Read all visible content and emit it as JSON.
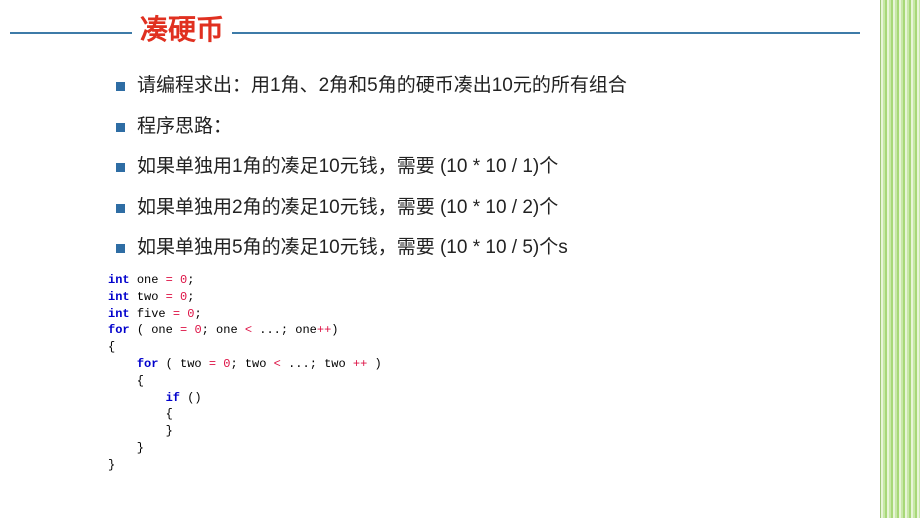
{
  "title": "凑硬币",
  "bullets": [
    "请编程求出：用1角、2角和5角的硬币凑出10元的所有组合",
    "程序思路：",
    "如果单独用1角的凑足10元钱，需要 (10 * 10 / 1)个",
    "如果单独用2角的凑足10元钱，需要 (10 * 10 / 2)个",
    "如果单独用5角的凑足10元钱，需要 (10 * 10 / 5)个s"
  ],
  "colors": {
    "title": "#e03020",
    "rule": "#3d7ba8",
    "bullet": "#2e6da4",
    "text": "#222222",
    "keyword": "#0000cc",
    "literal": "#dd1144",
    "guide": "#c8c8d0",
    "stripe_light": "#e8f5d8",
    "stripe_mid": "#c8e8a8",
    "stripe_dark": "#a8d878"
  },
  "code": {
    "lines": [
      [
        {
          "t": "int ",
          "c": "kw"
        },
        {
          "t": "one ",
          "c": ""
        },
        {
          "t": "= ",
          "c": "op"
        },
        {
          "t": "0",
          "c": "num"
        },
        {
          "t": ";",
          "c": ""
        }
      ],
      [
        {
          "t": "int ",
          "c": "kw"
        },
        {
          "t": "two ",
          "c": ""
        },
        {
          "t": "= ",
          "c": "op"
        },
        {
          "t": "0",
          "c": "num"
        },
        {
          "t": ";",
          "c": ""
        }
      ],
      [
        {
          "t": "int ",
          "c": "kw"
        },
        {
          "t": "five ",
          "c": ""
        },
        {
          "t": "= ",
          "c": "op"
        },
        {
          "t": "0",
          "c": "num"
        },
        {
          "t": ";",
          "c": ""
        }
      ],
      [
        {
          "t": "",
          "c": ""
        }
      ],
      [
        {
          "t": "for ",
          "c": "kw"
        },
        {
          "t": "( one ",
          "c": ""
        },
        {
          "t": "= ",
          "c": "op"
        },
        {
          "t": "0",
          "c": "num"
        },
        {
          "t": "; one ",
          "c": ""
        },
        {
          "t": "< ",
          "c": "op"
        },
        {
          "t": "...",
          "c": ""
        },
        {
          "t": "; one",
          "c": ""
        },
        {
          "t": "++",
          "c": "op"
        },
        {
          "t": ")",
          "c": ""
        }
      ],
      [
        {
          "t": "{",
          "c": ""
        }
      ],
      [
        {
          "t": "    ",
          "c": ""
        },
        {
          "t": "for ",
          "c": "kw"
        },
        {
          "t": "( two ",
          "c": ""
        },
        {
          "t": "= ",
          "c": "op"
        },
        {
          "t": "0",
          "c": "num"
        },
        {
          "t": "; two ",
          "c": ""
        },
        {
          "t": "< ",
          "c": "op"
        },
        {
          "t": "...",
          "c": ""
        },
        {
          "t": "; two ",
          "c": ""
        },
        {
          "t": "++ ",
          "c": "op"
        },
        {
          "t": ")",
          "c": ""
        }
      ],
      [
        {
          "t": "    {",
          "c": ""
        }
      ],
      [
        {
          "t": "        ",
          "c": ""
        },
        {
          "t": "if ",
          "c": "kw"
        },
        {
          "t": "()",
          "c": ""
        }
      ],
      [
        {
          "t": "        {",
          "c": ""
        }
      ],
      [
        {
          "t": "        }",
          "c": ""
        }
      ],
      [
        {
          "t": "    }",
          "c": ""
        }
      ],
      [
        {
          "t": "}",
          "c": ""
        }
      ]
    ]
  }
}
